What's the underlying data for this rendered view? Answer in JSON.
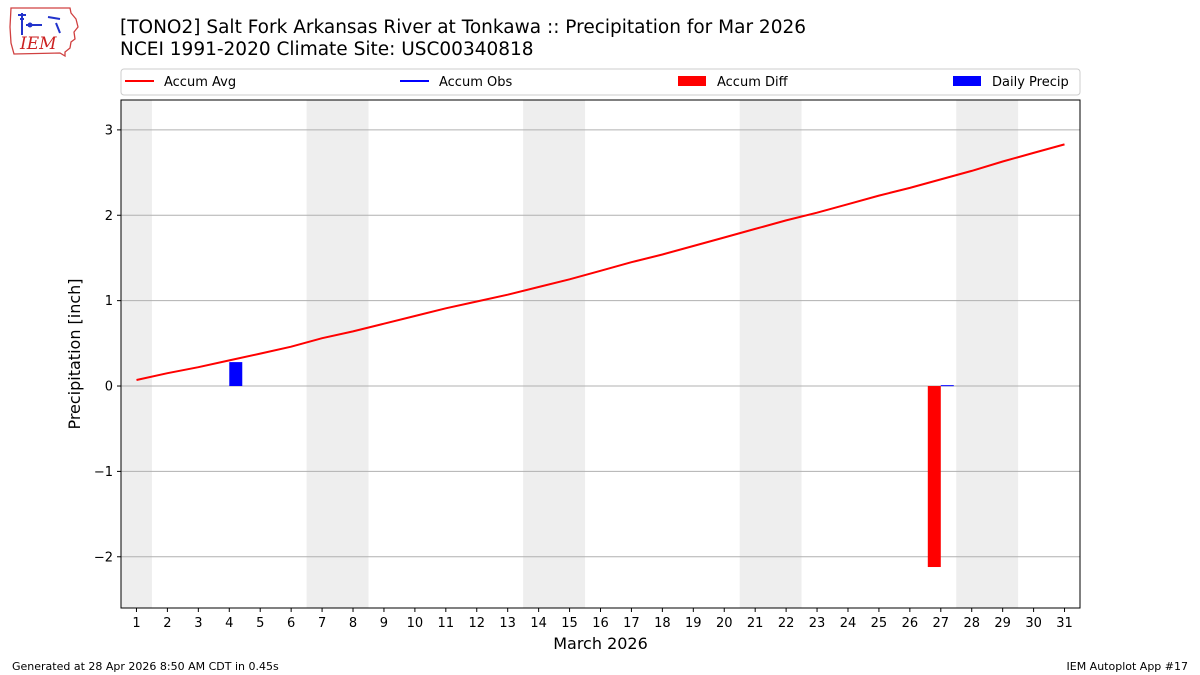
{
  "header": {
    "title_line1": "[TONO2] Salt Fork Arkansas River at Tonkawa :: Precipitation for Mar 2026",
    "title_line2": "NCEI 1991-2020 Climate Site: USC00340818",
    "logo_text": "IEM"
  },
  "footer": {
    "generated": "Generated at 28 Apr 2026 8:50 AM CDT in 0.45s",
    "app": "IEM Autoplot App #17"
  },
  "colors": {
    "accum_avg": "#ff0000",
    "accum_obs": "#0000ff",
    "accum_diff": "#ff0000",
    "daily_precip": "#0000ff",
    "weekend_shade": "#eeeeee",
    "grid": "#b0b0b0"
  },
  "chart_data": {
    "type": "line",
    "xlabel": "March 2026",
    "ylabel": "Precipitation [inch]",
    "ylim": [
      -2.6,
      3.35
    ],
    "yticks": [
      -2,
      -1,
      0,
      1,
      2,
      3
    ],
    "ytick_labels": [
      "−2",
      "−1",
      "0",
      "1",
      "2",
      "3"
    ],
    "days": [
      1,
      2,
      3,
      4,
      5,
      6,
      7,
      8,
      9,
      10,
      11,
      12,
      13,
      14,
      15,
      16,
      17,
      18,
      19,
      20,
      21,
      22,
      23,
      24,
      25,
      26,
      27,
      28,
      29,
      30,
      31
    ],
    "weekend_bands": [
      [
        1,
        1
      ],
      [
        7,
        8
      ],
      [
        14,
        15
      ],
      [
        21,
        22
      ],
      [
        28,
        29
      ]
    ],
    "grid": "horizontal",
    "legend": {
      "placement": "top",
      "entries": [
        {
          "label": "Accum Avg",
          "kind": "line",
          "color": "#ff0000"
        },
        {
          "label": "Accum Obs",
          "kind": "line",
          "color": "#0000ff"
        },
        {
          "label": "Accum Diff",
          "kind": "bar",
          "color": "#ff0000"
        },
        {
          "label": "Daily Precip",
          "kind": "bar",
          "color": "#0000ff"
        }
      ]
    },
    "series": [
      {
        "name": "Accum Avg",
        "kind": "line",
        "values": [
          0.07,
          0.15,
          0.22,
          0.3,
          0.38,
          0.46,
          0.56,
          0.64,
          0.73,
          0.82,
          0.91,
          0.99,
          1.07,
          1.16,
          1.25,
          1.35,
          1.45,
          1.54,
          1.64,
          1.74,
          1.84,
          1.94,
          2.03,
          2.13,
          2.23,
          2.32,
          2.42,
          2.52,
          2.63,
          2.73,
          2.83
        ]
      },
      {
        "name": "Accum Diff",
        "kind": "bar",
        "points": [
          {
            "day": 27,
            "value": -2.12
          }
        ]
      },
      {
        "name": "Daily Precip",
        "kind": "bar",
        "points": [
          {
            "day": 4,
            "value": 0.28
          },
          {
            "day": 27,
            "value": 0.01
          }
        ]
      }
    ]
  }
}
